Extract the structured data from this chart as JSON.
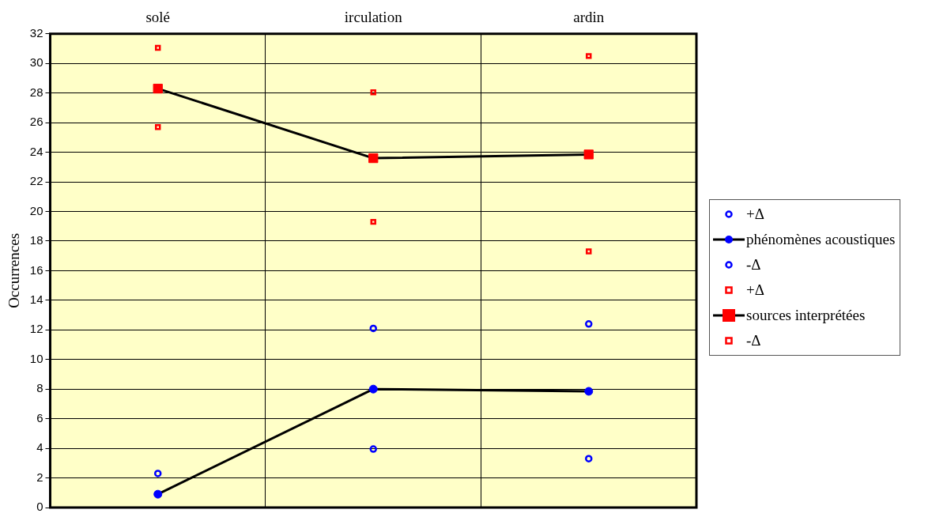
{
  "chart_data": {
    "type": "line",
    "ylabel": "Occurrences",
    "categories": [
      "solé",
      "irculation",
      "ardin"
    ],
    "ylim": [
      0,
      32
    ],
    "yticks": [
      0,
      2,
      4,
      6,
      8,
      10,
      12,
      14,
      16,
      18,
      20,
      22,
      24,
      26,
      28,
      30,
      32
    ],
    "grid": true,
    "legend": "right",
    "series": [
      {
        "name": "+Δ",
        "type": "scatter",
        "marker": "circle",
        "color": "#0000ff",
        "values": [
          2.3,
          12.1,
          12.4
        ]
      },
      {
        "name": "phénomènes acoustiques",
        "type": "line",
        "marker": "circle",
        "color": "#0000ff",
        "values": [
          0.9,
          8.0,
          7.85
        ]
      },
      {
        "name": "-Δ",
        "type": "scatter",
        "marker": "circle",
        "color": "#0000ff",
        "values": [
          null,
          3.95,
          3.3
        ]
      },
      {
        "name": "+Δ",
        "type": "scatter",
        "marker": "square",
        "color": "#ff0000",
        "values": [
          31.05,
          28.05,
          30.5
        ]
      },
      {
        "name": "sources interprétées",
        "type": "line",
        "marker": "square",
        "color": "#ff0000",
        "values": [
          28.3,
          23.6,
          23.85
        ]
      },
      {
        "name": "-Δ",
        "type": "scatter",
        "marker": "square",
        "color": "#ff0000",
        "values": [
          25.7,
          19.3,
          17.3
        ]
      }
    ]
  }
}
